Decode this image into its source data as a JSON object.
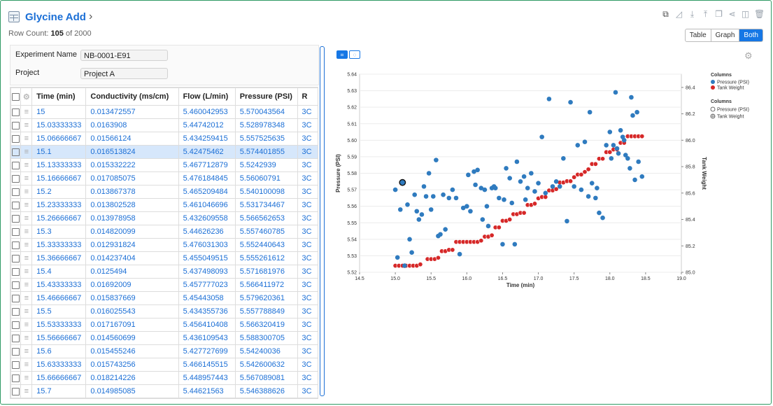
{
  "header": {
    "title": "Glycine Add",
    "row_count_prefix": "Row Count: ",
    "row_count": "105",
    "row_count_suffix": " of 2000"
  },
  "view_toggle": {
    "table": "Table",
    "graph": "Graph",
    "both": "Both"
  },
  "metadata": [
    {
      "label": "Experiment Name",
      "value": "NB-0001-E91"
    },
    {
      "label": "Project",
      "value": "Project A"
    }
  ],
  "grid": {
    "columns": [
      "Time (min)",
      "Conductivity (ms/cm)",
      "Flow (L/min)",
      "Pressure (PSI)",
      "R"
    ],
    "rows": [
      [
        "15",
        "0.013472557",
        "5.460042953",
        "5.570043564",
        "3C"
      ],
      [
        "15.03333333",
        "0.0163908",
        "5.44742012",
        "5.528978348",
        "3C"
      ],
      [
        "15.06666667",
        "0.01566124",
        "5.434259415",
        "5.557525635",
        "3C"
      ],
      [
        "15.1",
        "0.016513824",
        "5.42475462",
        "5.574401855",
        "3C"
      ],
      [
        "15.13333333",
        "0.015332222",
        "5.467712879",
        "5.5242939",
        "3C"
      ],
      [
        "15.16666667",
        "0.017085075",
        "5.476184845",
        "5.56060791",
        "3C"
      ],
      [
        "15.2",
        "0.013867378",
        "5.465209484",
        "5.540100098",
        "3C"
      ],
      [
        "15.23333333",
        "0.013802528",
        "5.461046696",
        "5.531734467",
        "3C"
      ],
      [
        "15.26666667",
        "0.013978958",
        "5.432609558",
        "5.566562653",
        "3C"
      ],
      [
        "15.3",
        "0.014820099",
        "5.44626236",
        "5.557460785",
        "3C"
      ],
      [
        "15.33333333",
        "0.012931824",
        "5.476031303",
        "5.552440643",
        "3C"
      ],
      [
        "15.36666667",
        "0.014237404",
        "5.455049515",
        "5.555261612",
        "3C"
      ],
      [
        "15.4",
        "0.0125494",
        "5.437498093",
        "5.571681976",
        "3C"
      ],
      [
        "15.43333333",
        "0.01692009",
        "5.457777023",
        "5.566411972",
        "3C"
      ],
      [
        "15.46666667",
        "0.015837669",
        "5.45443058",
        "5.579620361",
        "3C"
      ],
      [
        "15.5",
        "0.016025543",
        "5.434355736",
        "5.557788849",
        "3C"
      ],
      [
        "15.53333333",
        "0.017167091",
        "5.456410408",
        "5.566320419",
        "3C"
      ],
      [
        "15.56666667",
        "0.014560699",
        "5.436109543",
        "5.588300705",
        "3C"
      ],
      [
        "15.6",
        "0.015455246",
        "5.427727699",
        "5.54240036",
        "3C"
      ],
      [
        "15.63333333",
        "0.015743256",
        "5.466145515",
        "5.542600632",
        "3C"
      ],
      [
        "15.66666667",
        "0.018214226",
        "5.448957443",
        "5.567089081",
        "3C"
      ],
      [
        "15.7",
        "0.014985085",
        "5.44621563",
        "5.546388626",
        "3C"
      ]
    ],
    "selected_row": 3
  },
  "chart_data": {
    "type": "scatter",
    "xlabel": "Time (min)",
    "ylabel": "Pressure (PSI)",
    "y2label": "Tank Weight",
    "xlim": [
      14.5,
      19.0
    ],
    "ylim": [
      5.52,
      5.64
    ],
    "y2lim": [
      85.0,
      86.5
    ],
    "xticks": [
      "14.5",
      "15.0",
      "15.5",
      "16.0",
      "16.5",
      "17.0",
      "17.5",
      "18.0",
      "18.5",
      "19.0"
    ],
    "yticks": [
      "5.52",
      "5.53",
      "5.54",
      "5.55",
      "5.56",
      "5.57",
      "5.58",
      "5.59",
      "5.60",
      "5.61",
      "5.62",
      "5.63",
      "5.64"
    ],
    "y2ticks": [
      "85.0",
      "85.2",
      "85.4",
      "85.6",
      "85.8",
      "86.0",
      "86.2",
      "86.4"
    ],
    "legend": {
      "title1": "Columns",
      "items1": [
        "Pressure (PSI)",
        "Tank Weight"
      ],
      "title2": "Columns",
      "items2": [
        "Pressure (PSI)",
        "Tank Weight"
      ]
    },
    "colors": {
      "pressure": "#2f7bbf",
      "tank": "#d62828"
    },
    "highlight_point": [
      15.1,
      5.5744
    ],
    "series": [
      {
        "name": "Pressure (PSI)",
        "axis": "left",
        "points": [
          [
            15.0,
            5.57
          ],
          [
            15.03,
            5.529
          ],
          [
            15.07,
            5.558
          ],
          [
            15.1,
            5.574
          ],
          [
            15.13,
            5.524
          ],
          [
            15.17,
            5.561
          ],
          [
            15.2,
            5.54
          ],
          [
            15.23,
            5.532
          ],
          [
            15.27,
            5.567
          ],
          [
            15.3,
            5.557
          ],
          [
            15.33,
            5.552
          ],
          [
            15.37,
            5.555
          ],
          [
            15.4,
            5.572
          ],
          [
            15.43,
            5.566
          ],
          [
            15.47,
            5.58
          ],
          [
            15.5,
            5.558
          ],
          [
            15.53,
            5.566
          ],
          [
            15.57,
            5.588
          ],
          [
            15.6,
            5.542
          ],
          [
            15.63,
            5.543
          ],
          [
            15.67,
            5.567
          ],
          [
            15.7,
            5.546
          ],
          [
            15.75,
            5.565
          ],
          [
            15.8,
            5.57
          ],
          [
            15.85,
            5.565
          ],
          [
            15.9,
            5.531
          ],
          [
            15.95,
            5.559
          ],
          [
            16.0,
            5.56
          ],
          [
            16.02,
            5.579
          ],
          [
            16.05,
            5.557
          ],
          [
            16.1,
            5.581
          ],
          [
            16.12,
            5.573
          ],
          [
            16.15,
            5.582
          ],
          [
            16.2,
            5.571
          ],
          [
            16.22,
            5.552
          ],
          [
            16.25,
            5.57
          ],
          [
            16.28,
            5.56
          ],
          [
            16.3,
            5.548
          ],
          [
            16.35,
            5.571
          ],
          [
            16.38,
            5.572
          ],
          [
            16.4,
            5.571
          ],
          [
            16.45,
            5.565
          ],
          [
            16.5,
            5.537
          ],
          [
            16.52,
            5.564
          ],
          [
            16.55,
            5.583
          ],
          [
            16.6,
            5.577
          ],
          [
            16.63,
            5.562
          ],
          [
            16.67,
            5.537
          ],
          [
            16.7,
            5.587
          ],
          [
            16.75,
            5.575
          ],
          [
            16.8,
            5.578
          ],
          [
            16.82,
            5.564
          ],
          [
            16.85,
            5.571
          ],
          [
            16.9,
            5.58
          ],
          [
            16.95,
            5.569
          ],
          [
            17.0,
            5.574
          ],
          [
            17.05,
            5.602
          ],
          [
            17.1,
            5.568
          ],
          [
            17.15,
            5.625
          ],
          [
            17.2,
            5.572
          ],
          [
            17.25,
            5.575
          ],
          [
            17.3,
            5.572
          ],
          [
            17.35,
            5.589
          ],
          [
            17.4,
            5.551
          ],
          [
            17.45,
            5.623
          ],
          [
            17.5,
            5.572
          ],
          [
            17.55,
            5.597
          ],
          [
            17.6,
            5.57
          ],
          [
            17.65,
            5.599
          ],
          [
            17.7,
            5.566
          ],
          [
            17.72,
            5.617
          ],
          [
            17.75,
            5.574
          ],
          [
            17.8,
            5.565
          ],
          [
            17.82,
            5.571
          ],
          [
            17.85,
            5.556
          ],
          [
            17.9,
            5.553
          ],
          [
            17.95,
            5.597
          ],
          [
            18.0,
            5.605
          ],
          [
            18.02,
            5.589
          ],
          [
            18.05,
            5.597
          ],
          [
            18.08,
            5.629
          ],
          [
            18.1,
            5.595
          ],
          [
            18.12,
            5.592
          ],
          [
            18.15,
            5.606
          ],
          [
            18.18,
            5.602
          ],
          [
            18.2,
            5.6
          ],
          [
            18.22,
            5.591
          ],
          [
            18.25,
            5.589
          ],
          [
            18.28,
            5.583
          ],
          [
            18.3,
            5.626
          ],
          [
            18.32,
            5.615
          ],
          [
            18.35,
            5.576
          ],
          [
            18.38,
            5.617
          ],
          [
            18.4,
            5.587
          ],
          [
            18.45,
            5.578
          ]
        ]
      },
      {
        "name": "Tank Weight",
        "axis": "right",
        "points": [
          [
            15.0,
            85.05
          ],
          [
            15.05,
            85.05
          ],
          [
            15.1,
            85.05
          ],
          [
            15.15,
            85.05
          ],
          [
            15.2,
            85.05
          ],
          [
            15.25,
            85.05
          ],
          [
            15.3,
            85.05
          ],
          [
            15.35,
            85.06
          ],
          [
            15.45,
            85.1
          ],
          [
            15.5,
            85.1
          ],
          [
            15.55,
            85.1
          ],
          [
            15.6,
            85.11
          ],
          [
            15.65,
            85.16
          ],
          [
            15.7,
            85.16
          ],
          [
            15.75,
            85.17
          ],
          [
            15.8,
            85.17
          ],
          [
            15.85,
            85.23
          ],
          [
            15.9,
            85.23
          ],
          [
            15.95,
            85.23
          ],
          [
            16.0,
            85.23
          ],
          [
            16.05,
            85.23
          ],
          [
            16.1,
            85.23
          ],
          [
            16.15,
            85.23
          ],
          [
            16.2,
            85.24
          ],
          [
            16.25,
            85.27
          ],
          [
            16.3,
            85.27
          ],
          [
            16.35,
            85.28
          ],
          [
            16.4,
            85.34
          ],
          [
            16.45,
            85.34
          ],
          [
            16.5,
            85.39
          ],
          [
            16.55,
            85.39
          ],
          [
            16.6,
            85.4
          ],
          [
            16.65,
            85.44
          ],
          [
            16.7,
            85.44
          ],
          [
            16.75,
            85.45
          ],
          [
            16.8,
            85.45
          ],
          [
            16.85,
            85.51
          ],
          [
            16.9,
            85.51
          ],
          [
            16.95,
            85.52
          ],
          [
            17.0,
            85.56
          ],
          [
            17.05,
            85.57
          ],
          [
            17.1,
            85.57
          ],
          [
            17.15,
            85.62
          ],
          [
            17.2,
            85.62
          ],
          [
            17.25,
            85.63
          ],
          [
            17.3,
            85.68
          ],
          [
            17.35,
            85.68
          ],
          [
            17.4,
            85.69
          ],
          [
            17.45,
            85.69
          ],
          [
            17.5,
            85.72
          ],
          [
            17.55,
            85.74
          ],
          [
            17.6,
            85.74
          ],
          [
            17.65,
            85.76
          ],
          [
            17.7,
            85.78
          ],
          [
            17.75,
            85.82
          ],
          [
            17.8,
            85.82
          ],
          [
            17.85,
            85.86
          ],
          [
            17.9,
            85.86
          ],
          [
            17.95,
            85.91
          ],
          [
            18.0,
            85.91
          ],
          [
            18.05,
            85.93
          ],
          [
            18.1,
            85.93
          ],
          [
            18.15,
            85.98
          ],
          [
            18.2,
            85.98
          ],
          [
            18.25,
            86.03
          ],
          [
            18.3,
            86.03
          ],
          [
            18.35,
            86.03
          ],
          [
            18.4,
            86.03
          ],
          [
            18.45,
            86.03
          ]
        ]
      }
    ]
  }
}
